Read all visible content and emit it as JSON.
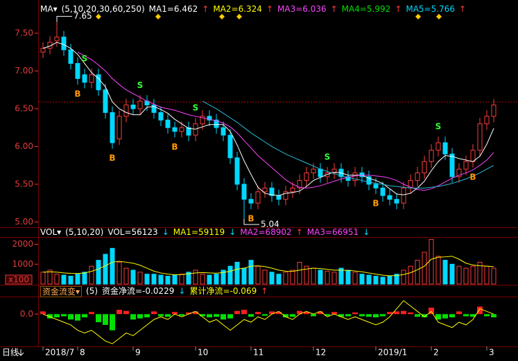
{
  "chart_data": [
    {
      "type": "candlestick",
      "header": {
        "label": "MA▾",
        "params": "(5,10,20,30,60,250)",
        "items": [
          {
            "text": "MA1=6.462",
            "color": "#ffffff",
            "arrow": "↑",
            "arrow_color": "#ff3c3c"
          },
          {
            "text": "MA2=6.324",
            "color": "#ffff00",
            "arrow": "↑",
            "arrow_color": "#ff3c3c"
          },
          {
            "text": "MA3=6.036",
            "color": "#ff44ff",
            "arrow": "↑",
            "arrow_color": "#ff3c3c"
          },
          {
            "text": "MA4=5.992",
            "color": "#00e000",
            "arrow": "↑",
            "arrow_color": "#ff3c3c"
          },
          {
            "text": "MA5=5.766",
            "color": "#00d8ff",
            "arrow": "↑",
            "arrow_color": "#ff3c3c"
          }
        ]
      },
      "categories": [
        "2018/7",
        null,
        null,
        null,
        null,
        "8",
        null,
        null,
        null,
        null,
        null,
        null,
        null,
        "9",
        null,
        null,
        null,
        null,
        null,
        null,
        null,
        null,
        "10",
        null,
        null,
        null,
        null,
        null,
        null,
        null,
        "11",
        null,
        null,
        null,
        null,
        null,
        null,
        null,
        null,
        "12",
        null,
        null,
        null,
        null,
        null,
        null,
        null,
        null,
        "2019/1",
        null,
        null,
        null,
        null,
        null,
        null,
        null,
        "2",
        null,
        null,
        null,
        null,
        null,
        null,
        null,
        "3",
        null
      ],
      "open": [
        7.25,
        7.3,
        7.4,
        7.45,
        7.28,
        7.1,
        6.95,
        6.85,
        6.95,
        6.75,
        6.45,
        6.1,
        6.4,
        6.55,
        6.5,
        6.6,
        6.55,
        6.45,
        6.35,
        6.25,
        6.2,
        6.25,
        6.15,
        6.3,
        6.4,
        6.35,
        6.25,
        6.15,
        5.85,
        5.5,
        5.3,
        5.25,
        5.4,
        5.45,
        5.35,
        5.3,
        5.4,
        5.45,
        5.55,
        5.65,
        5.7,
        5.6,
        5.65,
        5.7,
        5.6,
        5.55,
        5.65,
        5.6,
        5.5,
        5.45,
        5.35,
        5.3,
        5.25,
        5.45,
        5.55,
        5.65,
        5.8,
        5.95,
        6.05,
        5.9,
        5.6,
        5.7,
        5.8,
        5.95,
        6.3,
        6.4
      ],
      "high": [
        7.38,
        7.46,
        7.65,
        7.53,
        7.36,
        7.18,
        7.03,
        7.03,
        7.03,
        6.83,
        6.53,
        6.48,
        6.63,
        6.63,
        6.68,
        6.68,
        6.63,
        6.53,
        6.43,
        6.33,
        6.33,
        6.33,
        6.38,
        6.48,
        6.48,
        6.43,
        6.33,
        6.23,
        5.93,
        5.58,
        5.38,
        5.48,
        5.53,
        5.53,
        5.43,
        5.48,
        5.53,
        5.63,
        5.73,
        5.78,
        5.78,
        5.73,
        5.78,
        5.78,
        5.68,
        5.73,
        5.73,
        5.68,
        5.58,
        5.53,
        5.43,
        5.38,
        5.53,
        5.63,
        5.73,
        5.88,
        6.03,
        6.13,
        6.13,
        5.98,
        5.78,
        5.88,
        6.03,
        6.38,
        6.48,
        6.63
      ],
      "low": [
        7.17,
        7.22,
        7.32,
        7.2,
        7.02,
        6.82,
        6.77,
        6.77,
        6.67,
        6.37,
        5.97,
        6.02,
        6.32,
        6.42,
        6.42,
        6.47,
        6.37,
        6.27,
        6.17,
        6.12,
        6.12,
        6.07,
        6.07,
        6.22,
        6.27,
        6.17,
        6.07,
        5.77,
        5.42,
        5.04,
        5.17,
        5.17,
        5.32,
        5.27,
        5.22,
        5.22,
        5.32,
        5.37,
        5.47,
        5.57,
        5.52,
        5.52,
        5.57,
        5.52,
        5.47,
        5.47,
        5.52,
        5.42,
        5.37,
        5.27,
        5.22,
        5.17,
        5.17,
        5.37,
        5.47,
        5.57,
        5.72,
        5.87,
        5.82,
        5.52,
        5.52,
        5.62,
        5.72,
        5.87,
        6.22,
        6.32
      ],
      "close": [
        7.3,
        7.38,
        7.45,
        7.28,
        7.1,
        6.9,
        6.85,
        6.95,
        6.75,
        6.45,
        6.05,
        6.4,
        6.55,
        6.5,
        6.6,
        6.55,
        6.45,
        6.35,
        6.25,
        6.2,
        6.25,
        6.15,
        6.3,
        6.4,
        6.35,
        6.25,
        6.15,
        5.85,
        5.5,
        5.3,
        5.25,
        5.4,
        5.45,
        5.35,
        5.3,
        5.4,
        5.45,
        5.55,
        5.65,
        5.7,
        5.6,
        5.65,
        5.7,
        5.6,
        5.55,
        5.65,
        5.6,
        5.5,
        5.45,
        5.35,
        5.3,
        5.25,
        5.45,
        5.55,
        5.65,
        5.8,
        5.95,
        6.05,
        5.9,
        5.6,
        5.7,
        5.8,
        5.95,
        6.3,
        6.4,
        6.55
      ],
      "up_color": "#ff3c3c",
      "down_color": "#00d8ff",
      "ma_lines": [
        {
          "color": "#ffffff",
          "values": [
            7.3,
            7.33,
            7.38,
            7.35,
            7.3,
            7.22,
            7.1,
            6.98,
            6.9,
            6.79,
            6.59,
            6.5,
            6.45,
            6.42,
            6.42,
            6.52,
            6.53,
            6.49,
            6.44,
            6.36,
            6.3,
            6.24,
            6.23,
            6.26,
            6.29,
            6.29,
            6.29,
            6.2,
            6.02,
            5.81,
            5.63,
            5.46,
            5.38,
            5.36,
            5.35,
            5.38,
            5.39,
            5.41,
            5.47,
            5.55,
            5.59,
            5.63,
            5.66,
            5.65,
            5.62,
            5.62,
            5.62,
            5.58,
            5.55,
            5.51,
            5.44,
            5.37,
            5.36,
            5.38,
            5.45,
            5.54,
            5.68,
            5.8,
            5.88,
            5.87,
            5.84,
            5.82,
            5.8,
            5.87,
            6.03,
            6.24
          ]
        },
        {
          "color": "#ff44ff",
          "values": [
            null,
            null,
            null,
            null,
            null,
            7.25,
            7.2,
            7.15,
            7.08,
            7.0,
            6.9,
            6.82,
            6.75,
            6.7,
            6.65,
            6.6,
            6.56,
            6.52,
            6.5,
            6.48,
            6.45,
            6.42,
            6.4,
            6.38,
            6.36,
            6.34,
            6.31,
            6.26,
            6.18,
            6.08,
            5.98,
            5.88,
            5.8,
            5.72,
            5.64,
            5.56,
            5.5,
            5.46,
            5.45,
            5.46,
            5.48,
            5.51,
            5.54,
            5.57,
            5.59,
            5.61,
            5.62,
            5.62,
            5.61,
            5.6,
            5.58,
            5.55,
            5.5,
            5.46,
            5.43,
            5.42,
            5.44,
            5.48,
            5.53,
            5.58,
            5.62,
            5.65,
            5.69,
            5.75,
            5.82,
            5.92
          ]
        },
        {
          "color": "#2ab8d8",
          "values": [
            null,
            null,
            null,
            null,
            null,
            null,
            null,
            null,
            null,
            null,
            null,
            null,
            null,
            null,
            null,
            null,
            null,
            null,
            null,
            null,
            null,
            null,
            null,
            6.6,
            6.55,
            6.5,
            6.44,
            6.38,
            6.32,
            6.25,
            6.18,
            6.12,
            6.06,
            6.0,
            5.95,
            5.9,
            5.86,
            5.82,
            5.78,
            5.74,
            5.7,
            5.67,
            5.64,
            5.61,
            5.59,
            5.57,
            5.55,
            5.53,
            5.51,
            5.5,
            5.48,
            5.47,
            5.46,
            5.45,
            5.45,
            5.45,
            5.46,
            5.47,
            5.49,
            5.51,
            5.54,
            5.57,
            5.61,
            5.65,
            5.7,
            5.75
          ]
        }
      ],
      "signals": [
        null,
        null,
        null,
        null,
        null,
        "B",
        "S",
        null,
        null,
        null,
        "B",
        null,
        null,
        null,
        "S",
        null,
        null,
        null,
        null,
        "B",
        null,
        null,
        "S",
        null,
        null,
        null,
        null,
        null,
        null,
        null,
        "B",
        null,
        null,
        null,
        null,
        null,
        null,
        null,
        null,
        null,
        null,
        "S",
        null,
        null,
        null,
        null,
        null,
        null,
        "B",
        null,
        null,
        null,
        null,
        null,
        null,
        null,
        null,
        "S",
        null,
        null,
        null,
        null,
        "B",
        null,
        null,
        null
      ],
      "buy_color": "#ff9900",
      "sell_color": "#33ff33",
      "last_price": 6.59,
      "ylim": [
        4.93,
        7.83
      ],
      "yticks": [
        {
          "value": 5,
          "label": "5.00"
        },
        {
          "value": 5.5,
          "label": "5.50"
        },
        {
          "value": 6,
          "label": "6.00"
        },
        {
          "value": 6.5,
          "label": "6.50"
        },
        {
          "value": 7,
          "label": "7.00"
        },
        {
          "value": 7.5,
          "label": "7.50"
        }
      ],
      "tab_label": "日线"
    },
    {
      "type": "bar",
      "header": {
        "label": "VOL▾",
        "params": "(5,10,20)",
        "items": [
          {
            "text": "VOL=56123",
            "color": "#ffffff",
            "arrow": "↓",
            "arrow_color": "#00d8ff"
          },
          {
            "text": "MA1=59119",
            "color": "#ffff00",
            "arrow": "↓",
            "arrow_color": "#00d8ff"
          },
          {
            "text": "MA2=68902",
            "color": "#ff44ff",
            "arrow": "↑",
            "arrow_color": "#ff3c3c"
          },
          {
            "text": "MA3=66951",
            "color": "#ff44ff",
            "arrow": "↓",
            "arrow_color": "#00d8ff"
          }
        ]
      },
      "values": [
        600,
        700,
        500,
        450,
        400,
        500,
        600,
        900,
        1200,
        1500,
        1800,
        1100,
        800,
        700,
        600,
        500,
        500,
        450,
        400,
        450,
        500,
        600,
        700,
        500,
        450,
        500,
        700,
        900,
        1100,
        800,
        1200,
        900,
        700,
        600,
        500,
        600,
        700,
        1100,
        900,
        800,
        700,
        650,
        600,
        800,
        700,
        600,
        500,
        450,
        400,
        350,
        400,
        500,
        700,
        900,
        1200,
        1600,
        2250,
        1400,
        1200,
        1000,
        900,
        800,
        900,
        1100,
        900,
        800
      ],
      "ma_lines": [
        {
          "color": "#ffff00",
          "values": [
            600,
            620,
            600,
            560,
            540,
            530,
            560,
            640,
            760,
            920,
            1100,
            1150,
            1100,
            1050,
            950,
            800,
            650,
            560,
            500,
            470,
            480,
            520,
            560,
            580,
            560,
            550,
            580,
            650,
            750,
            800,
            900,
            920,
            880,
            800,
            700,
            650,
            640,
            700,
            760,
            800,
            780,
            740,
            700,
            700,
            690,
            660,
            620,
            560,
            500,
            450,
            420,
            430,
            480,
            570,
            720,
            900,
            1250,
            1350,
            1370,
            1400,
            1250,
            1050,
            960,
            920,
            900,
            880
          ]
        }
      ],
      "unit": "x100",
      "ylim": [
        0,
        2300
      ],
      "yticks": [
        1000,
        2000
      ]
    },
    {
      "type": "bar",
      "header": {
        "label": "资金流变▾",
        "params": "(5)",
        "items": [
          {
            "text": "资金净流=-0.0229",
            "color": "#ffffff",
            "arrow": "↓",
            "arrow_color": "#00d8ff"
          },
          {
            "text": "累计净流=-0.069",
            "color": "#ffff00",
            "arrow": "↑",
            "arrow_color": "#ff3c3c"
          }
        ]
      },
      "values": [
        0.005,
        -0.008,
        -0.006,
        -0.004,
        -0.01,
        -0.012,
        -0.006,
        0.004,
        -0.015,
        -0.02,
        -0.03,
        0.008,
        0.006,
        -0.01,
        -0.008,
        -0.006,
        0.005,
        -0.004,
        -0.005,
        0.004,
        -0.003,
        0.003,
        0.005,
        -0.004,
        -0.006,
        -0.005,
        -0.01,
        -0.008,
        0.006,
        0.008,
        -0.005,
        0.004,
        -0.003,
        0.005,
        0.004,
        -0.006,
        -0.005,
        0.006,
        0.004,
        -0.004,
        0.005,
        -0.003,
        0.004,
        -0.005,
        -0.004,
        0.003,
        -0.004,
        -0.005,
        -0.006,
        -0.004,
        0.004,
        0.005,
        0.006,
        0.003,
        -0.005,
        -0.006,
        0.012,
        -0.01,
        -0.008,
        -0.006,
        0.005,
        -0.004,
        -0.005,
        0.014,
        -0.004,
        -0.006
      ],
      "positive_color": "#ff2020",
      "negative_color": "#00e000",
      "cumulative": {
        "color": "#ffff00",
        "values": [
          0.0,
          -0.005,
          -0.01,
          -0.015,
          -0.02,
          -0.03,
          -0.035,
          -0.03,
          -0.04,
          -0.05,
          -0.055,
          -0.045,
          -0.035,
          -0.04,
          -0.03,
          -0.02,
          -0.01,
          -0.005,
          -0.01,
          0.0,
          -0.005,
          0.0,
          0.005,
          -0.005,
          -0.015,
          -0.01,
          -0.02,
          -0.03,
          -0.02,
          -0.01,
          -0.015,
          -0.005,
          -0.01,
          0.0,
          0.005,
          -0.005,
          -0.01,
          0.0,
          0.005,
          0.0,
          0.005,
          -0.005,
          0.0,
          -0.005,
          -0.01,
          -0.005,
          -0.01,
          -0.015,
          -0.02,
          -0.015,
          -0.005,
          0.01,
          0.025,
          0.015,
          0.005,
          -0.005,
          0.005,
          -0.015,
          -0.02,
          -0.025,
          -0.015,
          -0.02,
          -0.01,
          0.01,
          0.005,
          0.0
        ]
      },
      "ylim": [
        -0.06,
        0.03
      ],
      "yticks": [
        {
          "value": 0,
          "label": "0.0"
        }
      ]
    }
  ]
}
